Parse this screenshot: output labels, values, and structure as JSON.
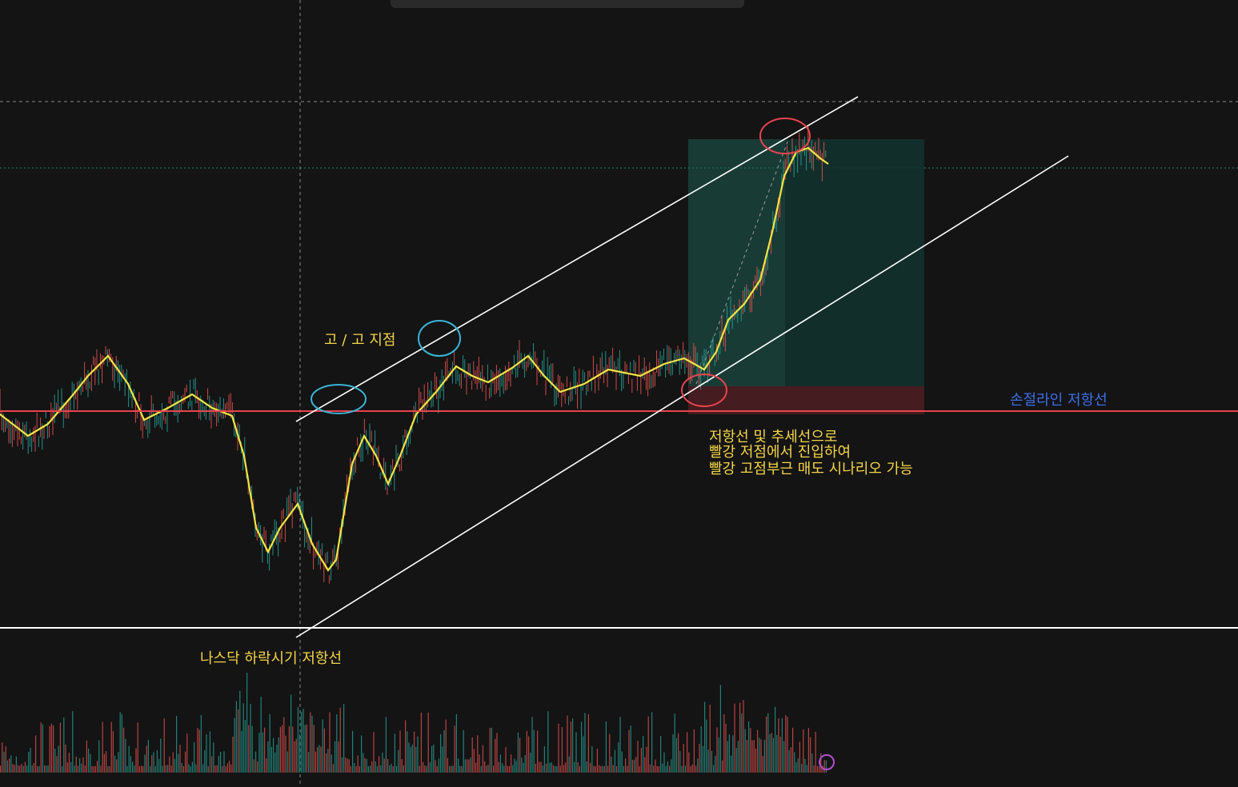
{
  "annotations": {
    "peak_label": "고 / 고 지점",
    "stop_line_label": "손절라인 저항선",
    "scenario": [
      "저항선 및 추세선으로",
      "빨강 저점에서 진입하여",
      "빨강 고점부근 매도 시나리오 가능"
    ],
    "nasdaq_label": "나스닥 하락시기 저항선"
  }
}
